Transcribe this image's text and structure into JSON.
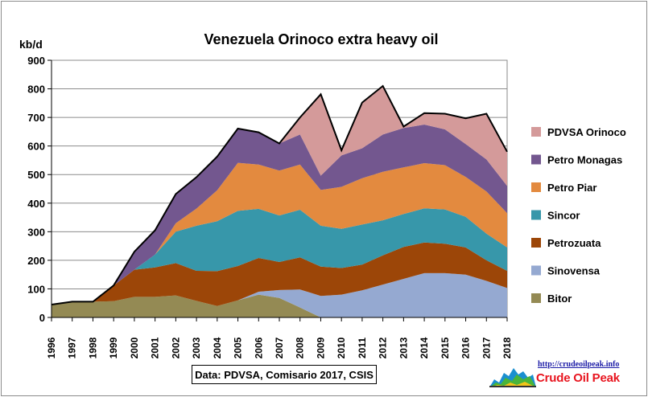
{
  "chart_data": {
    "type": "area",
    "stacked": true,
    "title": "Venezuela Orinoco  extra heavy oil",
    "ylabel": "kb/d",
    "xlabel": "",
    "ylim": [
      0,
      900
    ],
    "yticks": [
      0,
      100,
      200,
      300,
      400,
      500,
      600,
      700,
      800,
      900
    ],
    "x": [
      1996,
      1997,
      1998,
      1999,
      2000,
      2001,
      2002,
      2003,
      2004,
      2005,
      2006,
      2007,
      2008,
      2009,
      2010,
      2011,
      2012,
      2013,
      2014,
      2015,
      2016,
      2017,
      2018
    ],
    "grid": true,
    "legend_position": "right",
    "series": [
      {
        "name": "Bitor",
        "color": "#948a54",
        "values": [
          45,
          55,
          55,
          57,
          72,
          72,
          77,
          58,
          40,
          60,
          80,
          68,
          35,
          0,
          0,
          0,
          0,
          0,
          0,
          0,
          0,
          0,
          0
        ]
      },
      {
        "name": "Sinovensa",
        "color": "#95a9d1",
        "values": [
          0,
          0,
          0,
          0,
          0,
          0,
          0,
          0,
          0,
          0,
          10,
          28,
          63,
          75,
          80,
          95,
          115,
          135,
          155,
          155,
          150,
          128,
          103
        ]
      },
      {
        "name": "Petrozuata",
        "color": "#9c4608",
        "values": [
          0,
          0,
          0,
          55,
          95,
          103,
          113,
          105,
          122,
          120,
          118,
          98,
          112,
          103,
          93,
          90,
          102,
          112,
          107,
          103,
          95,
          72,
          60
        ]
      },
      {
        "name": "Sincor",
        "color": "#3797aa",
        "values": [
          0,
          0,
          0,
          0,
          0,
          45,
          110,
          158,
          175,
          193,
          172,
          163,
          167,
          143,
          137,
          140,
          123,
          115,
          120,
          120,
          107,
          93,
          82
        ]
      },
      {
        "name": "Petro Piar",
        "color": "#e38a3f",
        "values": [
          0,
          0,
          0,
          0,
          0,
          0,
          30,
          60,
          108,
          168,
          155,
          157,
          158,
          125,
          147,
          162,
          170,
          163,
          158,
          155,
          140,
          148,
          120
        ]
      },
      {
        "name": "Petro Monagas",
        "color": "#73578f",
        "values": [
          0,
          0,
          0,
          0,
          63,
          85,
          102,
          110,
          118,
          120,
          113,
          95,
          105,
          50,
          110,
          105,
          130,
          138,
          135,
          125,
          115,
          112,
          95
        ]
      },
      {
        "name": "PDVSA Orinoco",
        "color": "#d49a9a",
        "values": [
          0,
          0,
          0,
          0,
          0,
          0,
          0,
          0,
          0,
          0,
          0,
          0,
          60,
          285,
          18,
          160,
          170,
          5,
          40,
          55,
          90,
          160,
          120
        ]
      }
    ],
    "total_line_color": "#000000",
    "source_note": "Data: PDVSA, Comisario 2017, CSIS"
  },
  "branding": {
    "url": "http://crudeoilpeak.info",
    "name": "Crude Oil Peak"
  }
}
